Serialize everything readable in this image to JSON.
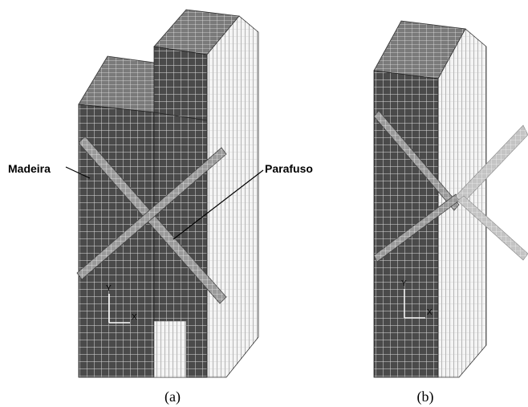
{
  "figure": {
    "panel_a": {
      "caption": "(a)",
      "labels": {
        "wood": "Madeira",
        "screw": "Parafuso"
      },
      "axes": {
        "x": "X",
        "y": "Y"
      }
    },
    "panel_b": {
      "caption": "(b)",
      "axes": {
        "x": "X",
        "y": "Y"
      }
    }
  }
}
